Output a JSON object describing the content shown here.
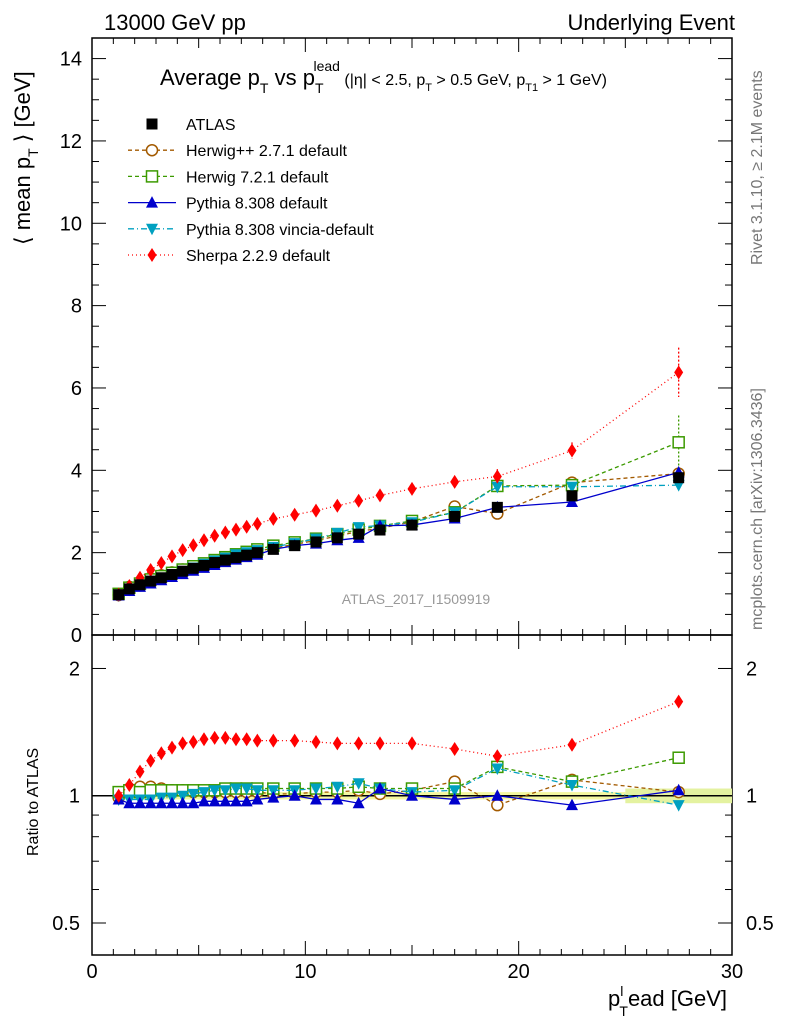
{
  "header": {
    "left": "13000 GeV pp",
    "right": "Underlying Event"
  },
  "side_labels": {
    "rivet": "Rivet 3.1.10, ≥ 2.1M events",
    "mcplots": "mcplots.cern.ch [arXiv:1306.3436]"
  },
  "watermark": "ATLAS_2017_I1509919",
  "title": {
    "main_a": "Average p",
    "main_a_sub": "T",
    "main_b": " vs p",
    "main_b_sub": "T",
    "main_b_sup": "lead",
    "cuts_a": " (|η| < 2.5, p",
    "cuts_a_sub": "T",
    "cuts_b": " > 0.5 GeV, p",
    "cuts_b_sub": "T1",
    "cuts_c": " > 1 GeV)"
  },
  "axes": {
    "ylabel_main": "⟨ mean p",
    "ylabel_main_sub": "T",
    "ylabel_main_tail": " ⟩ [GeV]",
    "ylabel_ratio": "Ratio to ATLAS",
    "xlabel": "p",
    "xlabel_sup": "l",
    "xlabel_sub": "T",
    "xlabel_tail": "ead [GeV]"
  },
  "chart_data": [
    {
      "type": "line",
      "panel": "main",
      "xlim": [
        0,
        30
      ],
      "ylim": [
        0,
        14.5
      ],
      "xticks": [
        0,
        10,
        20,
        30
      ],
      "yticks": [
        0,
        2,
        4,
        6,
        8,
        10,
        12,
        14
      ],
      "x": [
        1.25,
        1.75,
        2.25,
        2.75,
        3.25,
        3.75,
        4.25,
        4.75,
        5.25,
        5.75,
        6.25,
        6.75,
        7.25,
        7.75,
        8.5,
        9.5,
        10.5,
        11.5,
        12.5,
        13.5,
        15.0,
        17.0,
        19.0,
        22.5,
        27.5
      ],
      "legend_position": "top-left",
      "series": [
        {
          "name": "ATLAS",
          "color": "#000000",
          "marker": "square-filled",
          "dash": "none",
          "values": [
            0.98,
            1.12,
            1.22,
            1.31,
            1.39,
            1.47,
            1.55,
            1.62,
            1.69,
            1.76,
            1.82,
            1.88,
            1.94,
            2.0,
            2.08,
            2.17,
            2.26,
            2.36,
            2.45,
            2.55,
            2.67,
            2.88,
            3.1,
            3.38,
            3.82
          ]
        },
        {
          "name": "Herwig++ 2.7.1 default",
          "color": "#a35a00",
          "marker": "circle-open",
          "dash": "4,3",
          "values": [
            0.97,
            1.17,
            1.28,
            1.37,
            1.45,
            1.52,
            1.59,
            1.66,
            1.73,
            1.79,
            1.85,
            1.91,
            1.97,
            2.03,
            2.11,
            2.2,
            2.3,
            2.4,
            2.52,
            2.59,
            2.75,
            3.12,
            2.95,
            3.7,
            3.92
          ]
        },
        {
          "name": "Herwig 7.2.1 default",
          "color": "#3c9a00",
          "marker": "square-open",
          "dash": "4,3",
          "values": [
            1.0,
            1.15,
            1.25,
            1.35,
            1.43,
            1.51,
            1.59,
            1.67,
            1.74,
            1.82,
            1.89,
            1.96,
            2.02,
            2.08,
            2.17,
            2.25,
            2.34,
            2.45,
            2.56,
            2.65,
            2.77,
            2.98,
            3.62,
            3.64,
            4.68
          ]
        },
        {
          "name": "Pythia 8.308 default",
          "color": "#0000cc",
          "marker": "triangle-up",
          "dash": "none",
          "values": [
            0.96,
            1.07,
            1.17,
            1.25,
            1.33,
            1.41,
            1.48,
            1.56,
            1.63,
            1.7,
            1.77,
            1.83,
            1.89,
            1.95,
            2.08,
            2.17,
            2.22,
            2.3,
            2.36,
            2.65,
            2.67,
            2.83,
            3.1,
            3.23,
            3.95
          ]
        },
        {
          "name": "Pythia 8.308 vincia-default",
          "color": "#00a0c0",
          "marker": "triangle-down",
          "dash": "6,3,1,3",
          "values": [
            0.96,
            1.1,
            1.2,
            1.29,
            1.38,
            1.46,
            1.55,
            1.64,
            1.73,
            1.81,
            1.88,
            1.96,
            2.01,
            2.06,
            2.14,
            2.23,
            2.34,
            2.48,
            2.62,
            2.66,
            2.74,
            2.98,
            3.6,
            3.6,
            3.64
          ]
        },
        {
          "name": "Sherpa 2.2.9 default",
          "color": "#ff0000",
          "marker": "diamond",
          "dash": "1,3",
          "values": [
            0.98,
            1.19,
            1.39,
            1.58,
            1.75,
            1.91,
            2.06,
            2.18,
            2.3,
            2.41,
            2.49,
            2.56,
            2.63,
            2.7,
            2.82,
            2.92,
            3.02,
            3.14,
            3.26,
            3.39,
            3.55,
            3.72,
            3.85,
            4.48,
            6.38
          ]
        }
      ],
      "errors": {
        "Sherpa 2.2.9 default": [
          0,
          0,
          0,
          0,
          0,
          0,
          0,
          0,
          0,
          0,
          0,
          0,
          0,
          0,
          0,
          0,
          0,
          0,
          0,
          0,
          0.05,
          0.1,
          0.18,
          0.2,
          0.6
        ],
        "Herwig 7.2.1 default": [
          0,
          0,
          0,
          0,
          0,
          0,
          0,
          0,
          0,
          0,
          0,
          0,
          0,
          0,
          0,
          0,
          0,
          0,
          0,
          0,
          0.05,
          0.08,
          0.15,
          0.15,
          0.65
        ]
      }
    },
    {
      "type": "line",
      "panel": "ratio",
      "xlim": [
        0,
        30
      ],
      "ylim_log": [
        0.42,
        2.4
      ],
      "yticks": [
        0.5,
        1,
        2
      ],
      "x": [
        1.25,
        1.75,
        2.25,
        2.75,
        3.25,
        3.75,
        4.25,
        4.75,
        5.25,
        5.75,
        6.25,
        6.75,
        7.25,
        7.75,
        8.5,
        9.5,
        10.5,
        11.5,
        12.5,
        13.5,
        15.0,
        17.0,
        19.0,
        22.5,
        27.5
      ],
      "series": [
        {
          "name": "Herwig++ 2.7.1 default",
          "values": [
            0.99,
            1.04,
            1.05,
            1.05,
            1.04,
            1.03,
            1.03,
            1.02,
            1.02,
            1.02,
            1.02,
            1.02,
            1.02,
            1.02,
            1.01,
            1.01,
            1.02,
            1.02,
            1.03,
            1.01,
            1.03,
            1.08,
            0.95,
            1.09,
            1.02
          ]
        },
        {
          "name": "Herwig 7.2.1 default",
          "values": [
            1.02,
            1.03,
            1.02,
            1.03,
            1.03,
            1.03,
            1.03,
            1.03,
            1.03,
            1.03,
            1.04,
            1.04,
            1.04,
            1.04,
            1.04,
            1.04,
            1.04,
            1.04,
            1.05,
            1.04,
            1.04,
            1.04,
            1.17,
            1.08,
            1.23
          ]
        },
        {
          "name": "Pythia 8.308 default",
          "values": [
            0.98,
            0.96,
            0.96,
            0.96,
            0.96,
            0.96,
            0.96,
            0.96,
            0.97,
            0.97,
            0.97,
            0.97,
            0.97,
            0.98,
            0.99,
            1.0,
            0.98,
            0.98,
            0.96,
            1.04,
            1.0,
            0.98,
            1.0,
            0.95,
            1.03
          ]
        },
        {
          "name": "Pythia 8.308 vincia-default",
          "values": [
            0.98,
            0.98,
            0.98,
            0.98,
            0.99,
            0.99,
            1.0,
            1.01,
            1.02,
            1.03,
            1.03,
            1.04,
            1.04,
            1.03,
            1.03,
            1.03,
            1.04,
            1.05,
            1.07,
            1.04,
            1.02,
            1.03,
            1.16,
            1.06,
            0.95
          ]
        },
        {
          "name": "Sherpa 2.2.9 default",
          "values": [
            1.0,
            1.06,
            1.14,
            1.21,
            1.26,
            1.3,
            1.33,
            1.34,
            1.36,
            1.37,
            1.37,
            1.36,
            1.36,
            1.35,
            1.35,
            1.35,
            1.34,
            1.33,
            1.33,
            1.33,
            1.33,
            1.29,
            1.24,
            1.32,
            1.67
          ]
        }
      ]
    }
  ]
}
